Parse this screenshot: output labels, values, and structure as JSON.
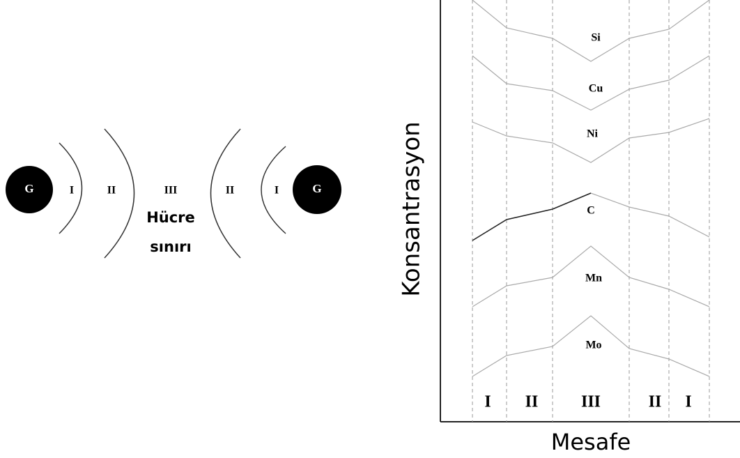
{
  "left_diagram": {
    "grains": [
      "G",
      "G"
    ],
    "zones": [
      "I",
      "II",
      "III",
      "II",
      "I"
    ],
    "cell_boundary": [
      "Hücre",
      "sınırı"
    ]
  },
  "right_diagram": {
    "y_axis_label": "Konsantrasyon",
    "x_axis_label": "Mesafe",
    "elements": [
      "Si",
      "Cu",
      "Ni",
      "C",
      "Mn",
      "Mo"
    ],
    "zones": [
      "I",
      "II",
      "III",
      "II",
      "I"
    ]
  }
}
